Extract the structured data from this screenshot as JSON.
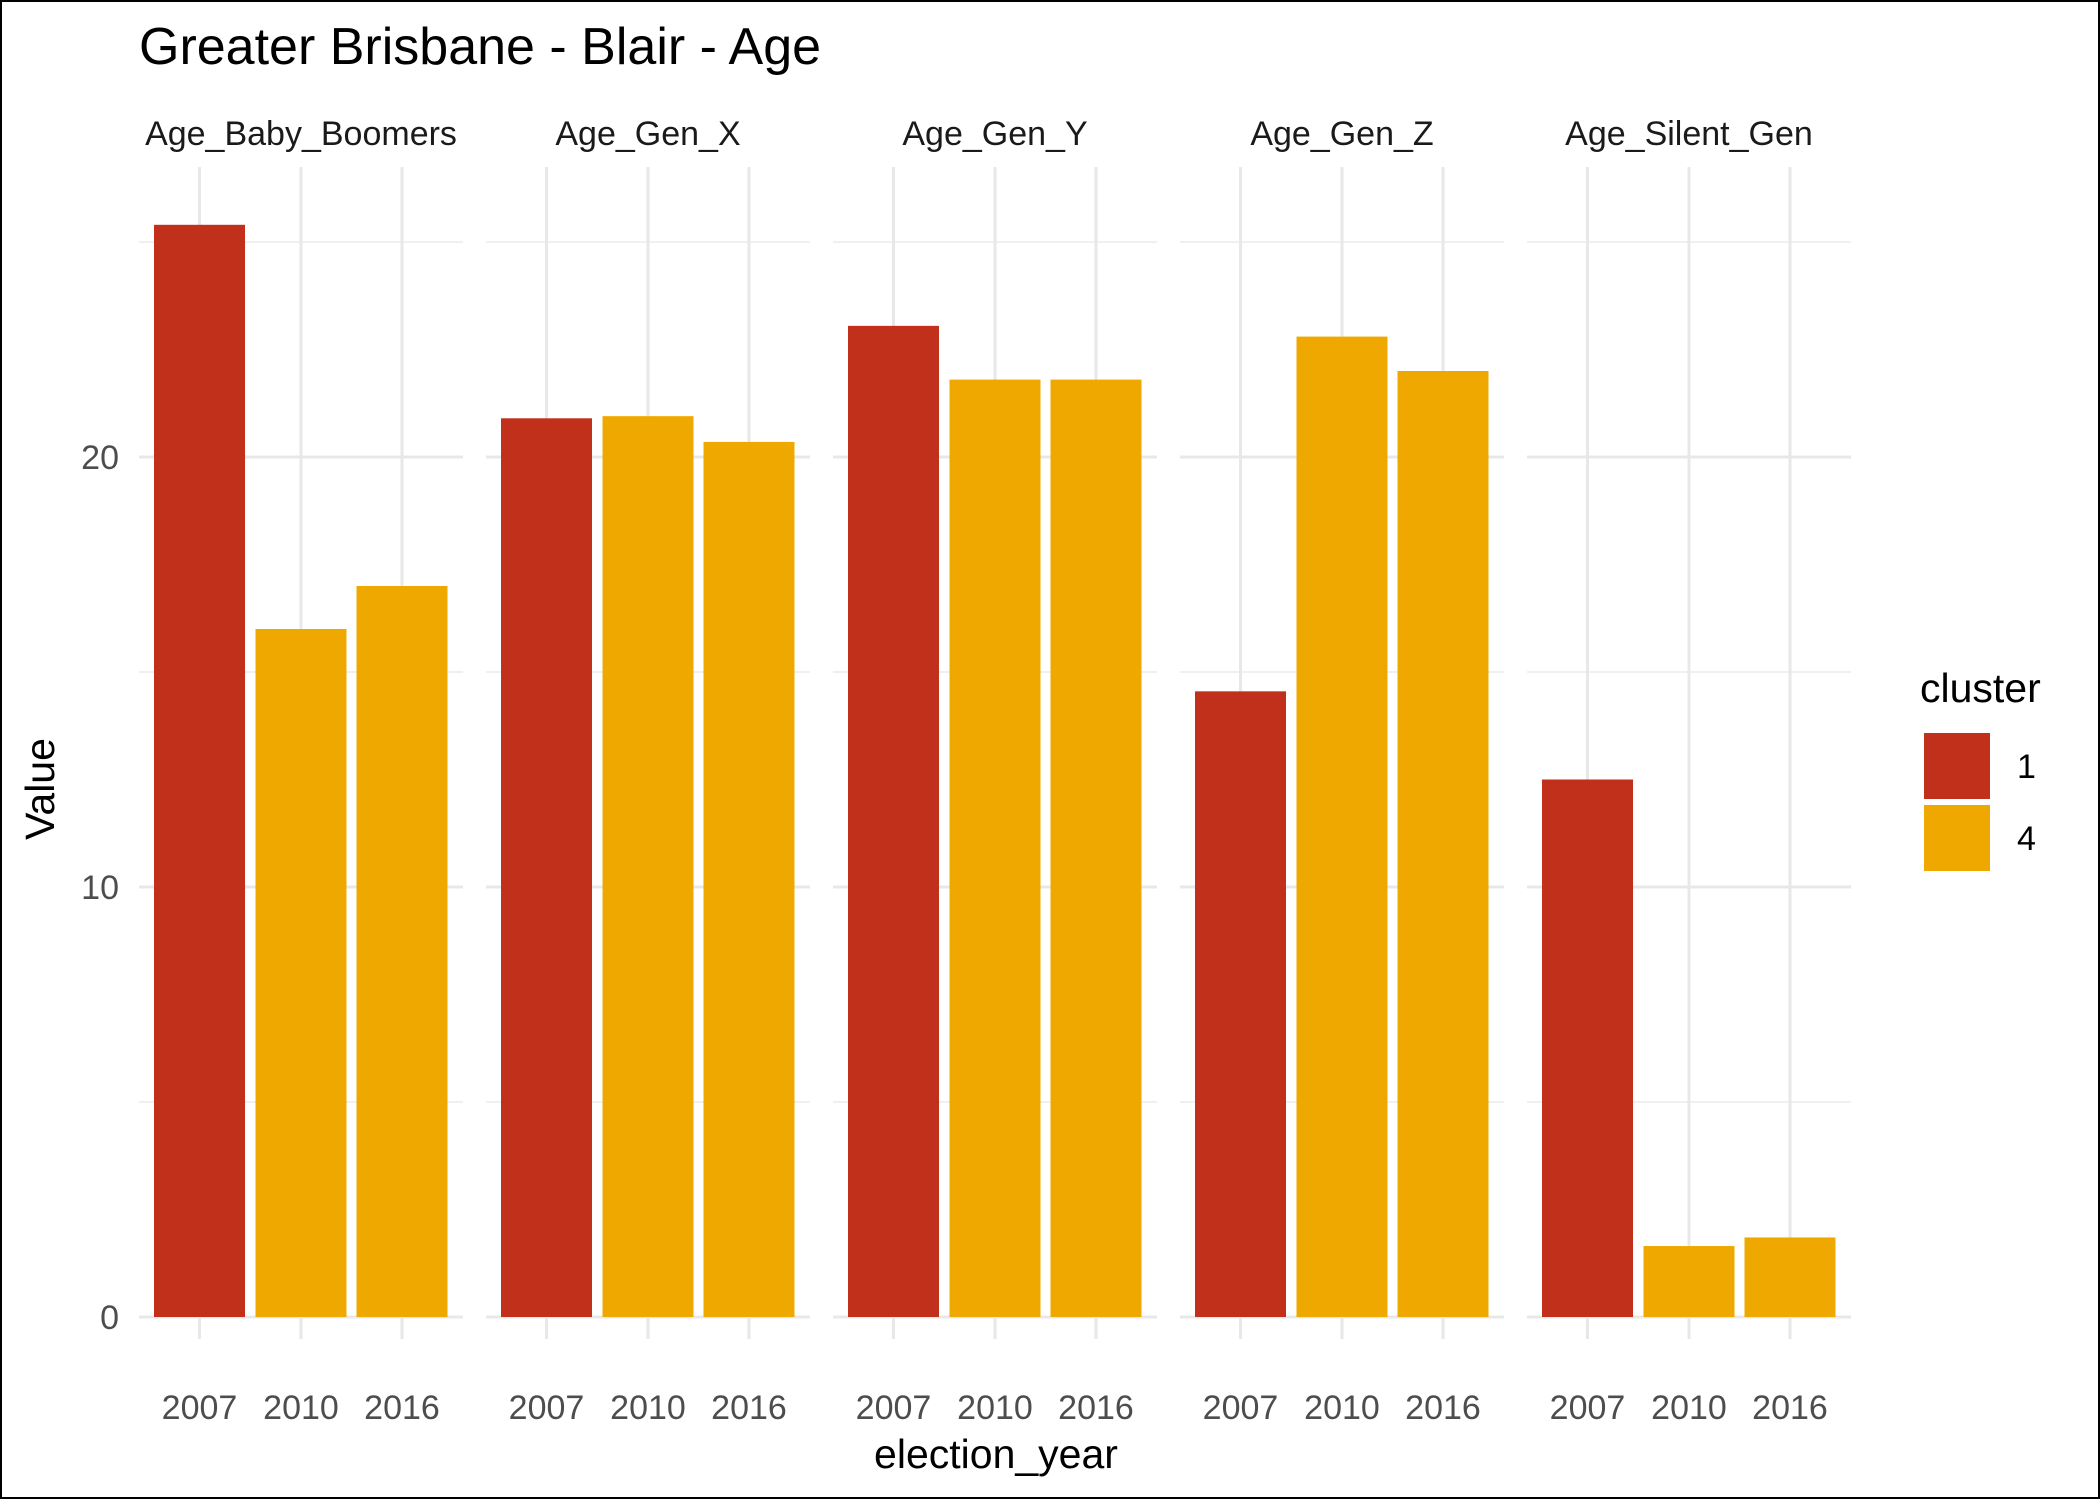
{
  "chart_data": {
    "type": "bar",
    "title": "Greater Brisbane - Blair - Age",
    "xlabel": "election_year",
    "ylabel": "Value",
    "ylim": [
      0,
      25.5
    ],
    "y_ticks": [
      0,
      10,
      20
    ],
    "grid": true,
    "facets": [
      "Age_Baby_Boomers",
      "Age_Gen_X",
      "Age_Gen_Y",
      "Age_Gen_Z",
      "Age_Silent_Gen"
    ],
    "categories": [
      "2007",
      "2010",
      "2016"
    ],
    "series": [
      {
        "facet": "Age_Baby_Boomers",
        "values": [
          25.4,
          16.0,
          17.0
        ],
        "clusters": [
          "1",
          "4",
          "4"
        ]
      },
      {
        "facet": "Age_Gen_X",
        "values": [
          20.9,
          20.95,
          20.35
        ],
        "clusters": [
          "1",
          "4",
          "4"
        ]
      },
      {
        "facet": "Age_Gen_Y",
        "values": [
          23.05,
          21.8,
          21.8
        ],
        "clusters": [
          "1",
          "4",
          "4"
        ]
      },
      {
        "facet": "Age_Gen_Z",
        "values": [
          14.55,
          22.8,
          22.0
        ],
        "clusters": [
          "1",
          "4",
          "4"
        ]
      },
      {
        "facet": "Age_Silent_Gen",
        "values": [
          12.5,
          1.65,
          1.85
        ],
        "clusters": [
          "1",
          "4",
          "4"
        ]
      }
    ],
    "legend": {
      "title": "cluster",
      "position": "right",
      "entries": [
        {
          "label": "1",
          "color": "#C0301A"
        },
        {
          "label": "4",
          "color": "#EFA800"
        }
      ]
    }
  }
}
